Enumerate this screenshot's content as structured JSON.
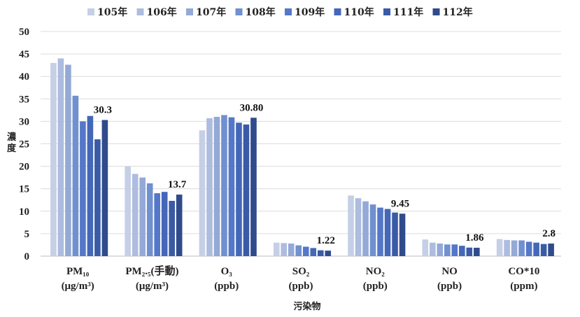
{
  "chart_data": {
    "type": "bar",
    "categories": [
      {
        "line1": "PM₁₀",
        "line2": "(μg/m³)"
      },
      {
        "line1": "PM₂.₅(手動)",
        "line2": "(μg/m³)"
      },
      {
        "line1": "O₃",
        "line2": "(ppb)"
      },
      {
        "line1": "SO₂",
        "line2": "(ppb)"
      },
      {
        "line1": "NO₂",
        "line2": "(ppb)"
      },
      {
        "line1": "NO",
        "line2": "(ppb)"
      },
      {
        "line1": "CO*10",
        "line2": "(ppm)"
      }
    ],
    "series": [
      {
        "name": "105年",
        "color": "#c5cfe6",
        "values": [
          43.0,
          20.0,
          28.0,
          3.0,
          13.5,
          3.7,
          3.8
        ]
      },
      {
        "name": "106年",
        "color": "#adbcdf",
        "values": [
          44.0,
          18.3,
          30.7,
          2.9,
          12.9,
          3.0,
          3.6
        ]
      },
      {
        "name": "107年",
        "color": "#94a9d6",
        "values": [
          42.6,
          17.5,
          31.0,
          2.8,
          12.2,
          2.8,
          3.5
        ]
      },
      {
        "name": "108年",
        "color": "#7090cf",
        "values": [
          35.7,
          16.2,
          31.4,
          2.4,
          11.5,
          2.6,
          3.5
        ]
      },
      {
        "name": "109年",
        "color": "#5577c8",
        "values": [
          30.0,
          14.0,
          30.9,
          2.1,
          10.8,
          2.6,
          3.2
        ]
      },
      {
        "name": "110年",
        "color": "#4467b8",
        "values": [
          31.2,
          14.3,
          29.7,
          1.8,
          10.5,
          2.3,
          3.0
        ]
      },
      {
        "name": "111年",
        "color": "#3b5aa6",
        "values": [
          26.0,
          12.3,
          29.3,
          1.3,
          9.7,
          1.9,
          2.7
        ]
      },
      {
        "name": "112年",
        "color": "#2f4b8c",
        "values": [
          30.3,
          13.7,
          30.8,
          1.22,
          9.45,
          1.86,
          2.8
        ]
      }
    ],
    "data_labels": [
      "30.3",
      "13.7",
      "30.80",
      "1.22",
      "9.45",
      "1.86",
      "2.8"
    ],
    "ylim": [
      0,
      50
    ],
    "yticks": [
      "0",
      "5",
      "10",
      "15",
      "20",
      "25",
      "30",
      "35",
      "40",
      "45",
      "50"
    ],
    "ylabel": "濃度",
    "xlabel": "污染物",
    "grid": true,
    "legend_position": "top"
  }
}
